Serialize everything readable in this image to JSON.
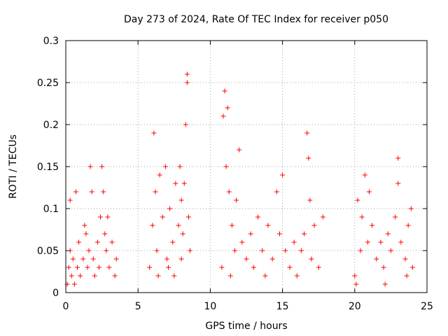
{
  "chart_data": {
    "type": "scatter",
    "title": "Day 273 of 2024, Rate Of TEC Index for receiver p050",
    "xlabel": "GPS time / hours",
    "ylabel": "ROTI / TECUs",
    "xlim": [
      0,
      25
    ],
    "ylim": [
      0,
      0.3
    ],
    "x_ticks": [
      "0",
      "5",
      "10",
      "15",
      "20",
      "25"
    ],
    "y_ticks": [
      "0",
      "0.05",
      "0.1",
      "0.15",
      "0.2",
      "0.25",
      "0.3"
    ],
    "grid": true,
    "marker": "plus",
    "color": "#ff0000",
    "series": [
      {
        "points": [
          [
            0.1,
            0.01
          ],
          [
            0.2,
            0.03
          ],
          [
            0.3,
            0.05
          ],
          [
            0.4,
            0.02
          ],
          [
            0.5,
            0.04
          ],
          [
            0.6,
            0.01
          ],
          [
            0.8,
            0.03
          ],
          [
            0.9,
            0.06
          ],
          [
            1.0,
            0.02
          ],
          [
            1.2,
            0.04
          ],
          [
            1.3,
            0.08
          ],
          [
            1.5,
            0.03
          ],
          [
            1.6,
            0.05
          ],
          [
            1.7,
            0.15
          ],
          [
            1.8,
            0.12
          ],
          [
            1.9,
            0.04
          ],
          [
            2.0,
            0.02
          ],
          [
            2.2,
            0.06
          ],
          [
            2.3,
            0.03
          ],
          [
            2.4,
            0.09
          ],
          [
            2.5,
            0.15
          ],
          [
            2.6,
            0.12
          ],
          [
            2.7,
            0.07
          ],
          [
            2.8,
            0.05
          ],
          [
            3.0,
            0.03
          ],
          [
            3.2,
            0.06
          ],
          [
            3.4,
            0.02
          ],
          [
            3.5,
            0.04
          ],
          [
            0.3,
            0.11
          ],
          [
            0.7,
            0.12
          ],
          [
            1.4,
            0.07
          ],
          [
            2.9,
            0.09
          ],
          [
            5.8,
            0.03
          ],
          [
            6.0,
            0.08
          ],
          [
            6.1,
            0.19
          ],
          [
            6.2,
            0.12
          ],
          [
            6.3,
            0.05
          ],
          [
            6.5,
            0.14
          ],
          [
            6.7,
            0.09
          ],
          [
            6.9,
            0.15
          ],
          [
            7.0,
            0.04
          ],
          [
            7.2,
            0.1
          ],
          [
            7.4,
            0.06
          ],
          [
            7.6,
            0.13
          ],
          [
            7.8,
            0.08
          ],
          [
            7.9,
            0.15
          ],
          [
            8.0,
            0.11
          ],
          [
            8.1,
            0.07
          ],
          [
            8.2,
            0.13
          ],
          [
            8.3,
            0.2
          ],
          [
            8.4,
            0.25
          ],
          [
            8.4,
            0.26
          ],
          [
            8.5,
            0.09
          ],
          [
            8.6,
            0.05
          ],
          [
            6.4,
            0.02
          ],
          [
            7.1,
            0.03
          ],
          [
            7.5,
            0.02
          ],
          [
            8.0,
            0.04
          ],
          [
            10.8,
            0.03
          ],
          [
            10.9,
            0.21
          ],
          [
            11.0,
            0.24
          ],
          [
            11.1,
            0.15
          ],
          [
            11.2,
            0.22
          ],
          [
            11.3,
            0.12
          ],
          [
            11.5,
            0.08
          ],
          [
            11.7,
            0.05
          ],
          [
            11.8,
            0.11
          ],
          [
            12.0,
            0.17
          ],
          [
            12.2,
            0.06
          ],
          [
            12.5,
            0.04
          ],
          [
            12.8,
            0.07
          ],
          [
            13.0,
            0.03
          ],
          [
            13.3,
            0.09
          ],
          [
            13.6,
            0.05
          ],
          [
            14.0,
            0.08
          ],
          [
            14.3,
            0.04
          ],
          [
            14.6,
            0.12
          ],
          [
            14.8,
            0.07
          ],
          [
            15.0,
            0.14
          ],
          [
            15.2,
            0.05
          ],
          [
            15.5,
            0.03
          ],
          [
            15.8,
            0.06
          ],
          [
            16.0,
            0.02
          ],
          [
            16.3,
            0.05
          ],
          [
            16.5,
            0.07
          ],
          [
            16.7,
            0.19
          ],
          [
            16.8,
            0.16
          ],
          [
            16.9,
            0.11
          ],
          [
            17.0,
            0.04
          ],
          [
            17.2,
            0.08
          ],
          [
            17.5,
            0.03
          ],
          [
            17.8,
            0.09
          ],
          [
            11.4,
            0.02
          ],
          [
            13.8,
            0.02
          ],
          [
            20.0,
            0.02
          ],
          [
            20.2,
            0.11
          ],
          [
            20.4,
            0.05
          ],
          [
            20.5,
            0.09
          ],
          [
            20.7,
            0.14
          ],
          [
            20.9,
            0.06
          ],
          [
            21.0,
            0.12
          ],
          [
            21.2,
            0.08
          ],
          [
            21.5,
            0.04
          ],
          [
            21.8,
            0.06
          ],
          [
            22.0,
            0.03
          ],
          [
            22.3,
            0.07
          ],
          [
            22.5,
            0.05
          ],
          [
            22.8,
            0.09
          ],
          [
            23.0,
            0.16
          ],
          [
            23.0,
            0.13
          ],
          [
            23.2,
            0.06
          ],
          [
            23.5,
            0.04
          ],
          [
            23.7,
            0.08
          ],
          [
            23.9,
            0.1
          ],
          [
            24.0,
            0.03
          ],
          [
            20.1,
            0.01
          ],
          [
            22.1,
            0.01
          ],
          [
            23.6,
            0.02
          ]
        ]
      }
    ]
  }
}
